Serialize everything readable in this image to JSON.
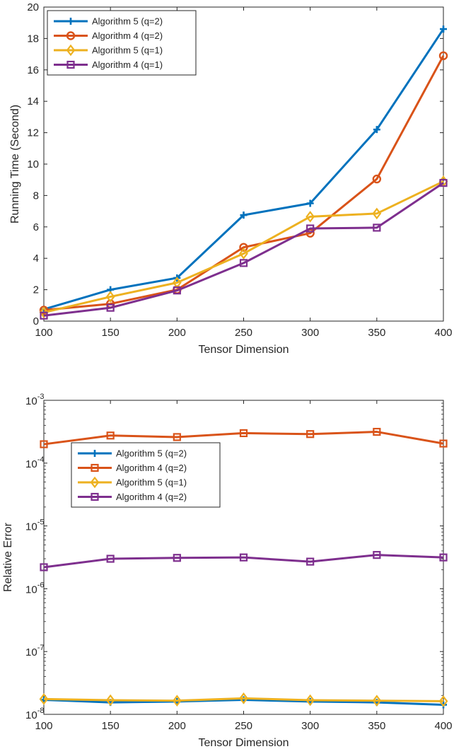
{
  "chart_data": [
    {
      "type": "line",
      "title": "",
      "xlabel": "Tensor Dimension",
      "ylabel": "Running Time (Second)",
      "x": [
        100,
        150,
        200,
        250,
        300,
        350,
        400
      ],
      "xlim": [
        100,
        400
      ],
      "ylim": [
        0,
        20
      ],
      "yscale": "linear",
      "xticks": [
        "100",
        "150",
        "200",
        "250",
        "300",
        "350",
        "400"
      ],
      "yticks": [
        "0",
        "2",
        "4",
        "6",
        "8",
        "10",
        "12",
        "14",
        "16",
        "18",
        "20"
      ],
      "grid": false,
      "legend_position": "top-left",
      "series": [
        {
          "name": "Algorithm 5 (q=2)",
          "color": "#0072BD",
          "marker": "plus",
          "values": [
            0.75,
            2.0,
            2.75,
            6.75,
            7.5,
            12.2,
            18.6
          ]
        },
        {
          "name": "Algorithm 4 (q=2)",
          "color": "#D95319",
          "marker": "circle",
          "values": [
            0.7,
            1.1,
            2.0,
            4.7,
            5.6,
            9.05,
            16.9
          ]
        },
        {
          "name": "Algorithm 5 (q=1)",
          "color": "#EDB120",
          "marker": "diamond",
          "values": [
            0.55,
            1.55,
            2.45,
            4.3,
            6.65,
            6.85,
            8.9
          ]
        },
        {
          "name": "Algorithm 4 (q=1)",
          "color": "#7E2F8E",
          "marker": "square",
          "values": [
            0.35,
            0.85,
            1.95,
            3.7,
            5.9,
            5.95,
            8.8
          ]
        }
      ]
    },
    {
      "type": "line",
      "title": "",
      "xlabel": "Tensor Dimension",
      "ylabel": "Relative Error",
      "x": [
        100,
        150,
        200,
        250,
        300,
        350,
        400
      ],
      "xlim": [
        100,
        400
      ],
      "ylim": [
        1e-08,
        0.001
      ],
      "yscale": "log",
      "xticks": [
        "100",
        "150",
        "200",
        "250",
        "300",
        "350",
        "400"
      ],
      "yticks": [
        {
          "base": "10",
          "exp": "-8"
        },
        {
          "base": "10",
          "exp": "-7"
        },
        {
          "base": "10",
          "exp": "-6"
        },
        {
          "base": "10",
          "exp": "-5"
        },
        {
          "base": "10",
          "exp": "-4"
        },
        {
          "base": "10",
          "exp": "-3"
        }
      ],
      "grid": false,
      "legend_position": "upper-left",
      "series": [
        {
          "name": "Algorithm 5 (q=2)",
          "color": "#0072BD",
          "marker": "plus",
          "values": [
            1.7e-08,
            1.55e-08,
            1.6e-08,
            1.7e-08,
            1.6e-08,
            1.55e-08,
            1.42e-08
          ]
        },
        {
          "name": "Algorithm 4 (q=2)",
          "color": "#D95319",
          "marker": "square",
          "values": [
            0.0002,
            0.000275,
            0.00026,
            0.0003,
            0.00029,
            0.000315,
            0.000205
          ]
        },
        {
          "name": "Algorithm 5 (q=1)",
          "color": "#EDB120",
          "marker": "diamond",
          "values": [
            1.75e-08,
            1.68e-08,
            1.65e-08,
            1.8e-08,
            1.68e-08,
            1.65e-08,
            1.62e-08
          ]
        },
        {
          "name": "Algorithm 4 (q=2)",
          "color": "#7E2F8E",
          "marker": "square",
          "values": [
            2.2e-06,
            3e-06,
            3.1e-06,
            3.15e-06,
            2.7e-06,
            3.45e-06,
            3.15e-06
          ]
        }
      ]
    }
  ]
}
